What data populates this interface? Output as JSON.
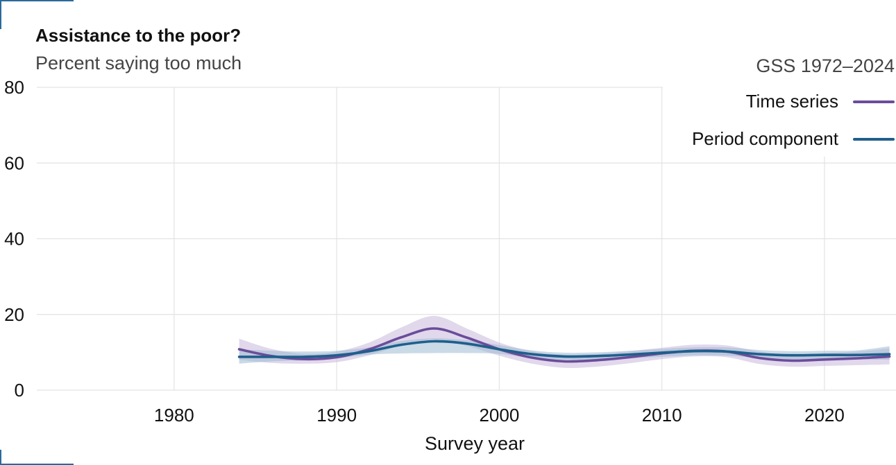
{
  "colors": {
    "time_series": "#6b4c9a",
    "period_component": "#1f5f8b",
    "time_series_band": "#c9b8dc",
    "period_band": "#9fbbd3",
    "grid": "#e3e3e3",
    "corner_marks": "#2b6a9c"
  },
  "chart_data": {
    "type": "line",
    "title": "Assistance to the poor?",
    "subtitle": "Percent saying too much",
    "xlabel": "Survey year",
    "ylabel": "",
    "xlim": [
      1971,
      2024.4
    ],
    "ylim": [
      0,
      80
    ],
    "x_ticks": [
      1980,
      1990,
      2000,
      2010,
      2020
    ],
    "y_ticks": [
      0,
      20,
      40,
      60,
      80
    ],
    "grid": true,
    "legend": {
      "title": "GSS 1972–2024",
      "position": "top-right",
      "entries": [
        "Time series",
        "Period component"
      ]
    },
    "series": [
      {
        "name": "Time series",
        "color": "#6b4c9a",
        "x": [
          1984,
          1986,
          1988,
          1990,
          1992,
          1994,
          1996,
          1998,
          2000,
          2002,
          2004,
          2006,
          2008,
          2010,
          2012,
          2014,
          2016,
          2018,
          2020,
          2022,
          2024
        ],
        "y": [
          10.8,
          9.0,
          8.2,
          8.7,
          10.8,
          14.0,
          16.3,
          13.9,
          10.8,
          8.6,
          7.6,
          7.9,
          8.7,
          9.7,
          10.4,
          10.2,
          8.5,
          7.8,
          8.1,
          8.4,
          8.9
        ],
        "lower": [
          8.0,
          7.2,
          7.0,
          7.4,
          9.2,
          11.8,
          13.3,
          11.7,
          9.1,
          7.0,
          5.9,
          6.2,
          7.1,
          8.2,
          8.9,
          8.7,
          6.9,
          6.2,
          6.4,
          6.6,
          6.8
        ],
        "upper": [
          13.6,
          10.9,
          9.6,
          10.2,
          12.6,
          16.6,
          19.6,
          16.3,
          12.6,
          10.3,
          9.4,
          9.6,
          10.3,
          11.2,
          12.0,
          11.8,
          10.2,
          9.4,
          9.8,
          10.2,
          11.0
        ]
      },
      {
        "name": "Period component",
        "color": "#1f5f8b",
        "x": [
          1984,
          1986,
          1988,
          1990,
          1992,
          1994,
          1996,
          1998,
          2000,
          2002,
          2004,
          2006,
          2008,
          2010,
          2012,
          2014,
          2016,
          2018,
          2020,
          2022,
          2024
        ],
        "y": [
          8.8,
          8.8,
          8.8,
          9.2,
          10.3,
          12.0,
          12.9,
          12.3,
          10.8,
          9.5,
          8.9,
          9.0,
          9.4,
          9.9,
          10.3,
          10.2,
          9.5,
          9.2,
          9.3,
          9.3,
          9.5
        ],
        "lower": [
          7.0,
          7.6,
          7.9,
          8.4,
          9.4,
          9.7,
          9.8,
          9.8,
          9.6,
          8.5,
          8.0,
          8.1,
          8.4,
          8.8,
          9.2,
          9.1,
          8.5,
          8.2,
          8.3,
          8.2,
          8.0
        ],
        "upper": [
          10.8,
          10.4,
          10.2,
          10.4,
          11.3,
          13.0,
          13.7,
          13.2,
          11.9,
          10.5,
          9.9,
          10.0,
          10.4,
          10.9,
          11.3,
          11.3,
          10.6,
          10.3,
          10.4,
          10.5,
          11.6
        ]
      }
    ]
  }
}
